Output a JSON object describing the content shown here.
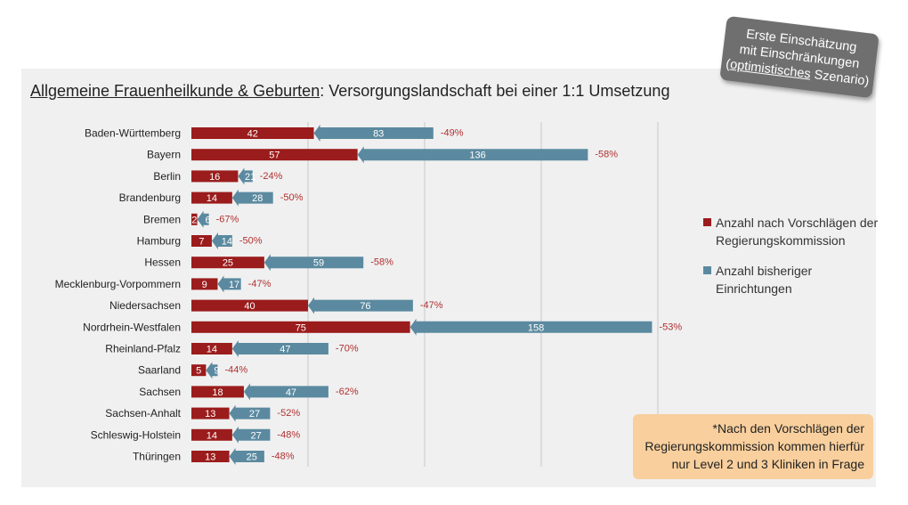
{
  "title": {
    "underlined": "Allgemeine Frauenheilkunde & Geburten",
    "rest": ": Versorgungslandschaft bei einer 1:1 Umsetzung"
  },
  "badge": {
    "line1": "Erste Einschätzung",
    "line2": "mit Einschränkungen",
    "line3_open": "(",
    "line3_underlined": "optimistisches",
    "line3_rest": " Szenario)"
  },
  "legend": {
    "new_label": "Anzahl nach Vorschlägen der Regierungskommission",
    "old_label": "Anzahl bisheriger Einrichtungen"
  },
  "note": "*Nach den Vorschlägen der Regierungskommission kommen hierfür nur Level 2 und 3 Kliniken in Frage",
  "colors": {
    "new": "#9b1c1c",
    "old": "#5b8aa0",
    "pct": "#b03030"
  },
  "chart_data": {
    "type": "bar",
    "orientation": "horizontal",
    "categories": [
      "Baden-Württemberg",
      "Bayern",
      "Berlin",
      "Brandenburg",
      "Bremen",
      "Hamburg",
      "Hessen",
      "Mecklenburg-Vorpommern",
      "Niedersachsen",
      "Nordrhein-Westfalen",
      "Rheinland-Pfalz",
      "Saarland",
      "Sachsen",
      "Sachsen-Anhalt",
      "Schleswig-Holstein",
      "Thüringen"
    ],
    "series": [
      {
        "name": "Anzahl bisheriger Einrichtungen",
        "values": [
          83,
          136,
          21,
          28,
          6,
          14,
          59,
          17,
          76,
          158,
          47,
          9,
          47,
          27,
          27,
          25
        ]
      },
      {
        "name": "Anzahl nach Vorschlägen der Regierungskommission",
        "values": [
          42,
          57,
          16,
          14,
          2,
          7,
          25,
          9,
          40,
          75,
          14,
          5,
          18,
          13,
          14,
          13
        ]
      }
    ],
    "change_labels": [
      "-49%",
      "-58%",
      "-24%",
      "-50%",
      "-67%",
      "-50%",
      "-58%",
      "-47%",
      "-47%",
      "-53%",
      "-70%",
      "-44%",
      "-62%",
      "-52%",
      "-48%",
      "-48%"
    ],
    "xlim": [
      0,
      160
    ],
    "grid": true,
    "legend_position": "right"
  }
}
